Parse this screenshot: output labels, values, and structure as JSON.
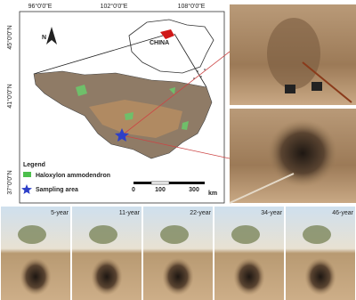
{
  "map": {
    "lon_labels": [
      "96°0'0\"E",
      "102°0'0\"E",
      "108°0'0\"E"
    ],
    "lat_labels": [
      "45°0'0\"N",
      "41°0'0\"N",
      "37°0'0\"N"
    ],
    "north": "N",
    "inset_label": "CHINA",
    "legend": {
      "title": "Legend",
      "items": [
        "Haloxylon ammodendron",
        "Sampling area"
      ]
    },
    "scale": {
      "labels": [
        0,
        100,
        300
      ],
      "unit": "km"
    }
  },
  "photos": [
    "5-year",
    "11-year",
    "22-year",
    "34-year",
    "46-year"
  ]
}
